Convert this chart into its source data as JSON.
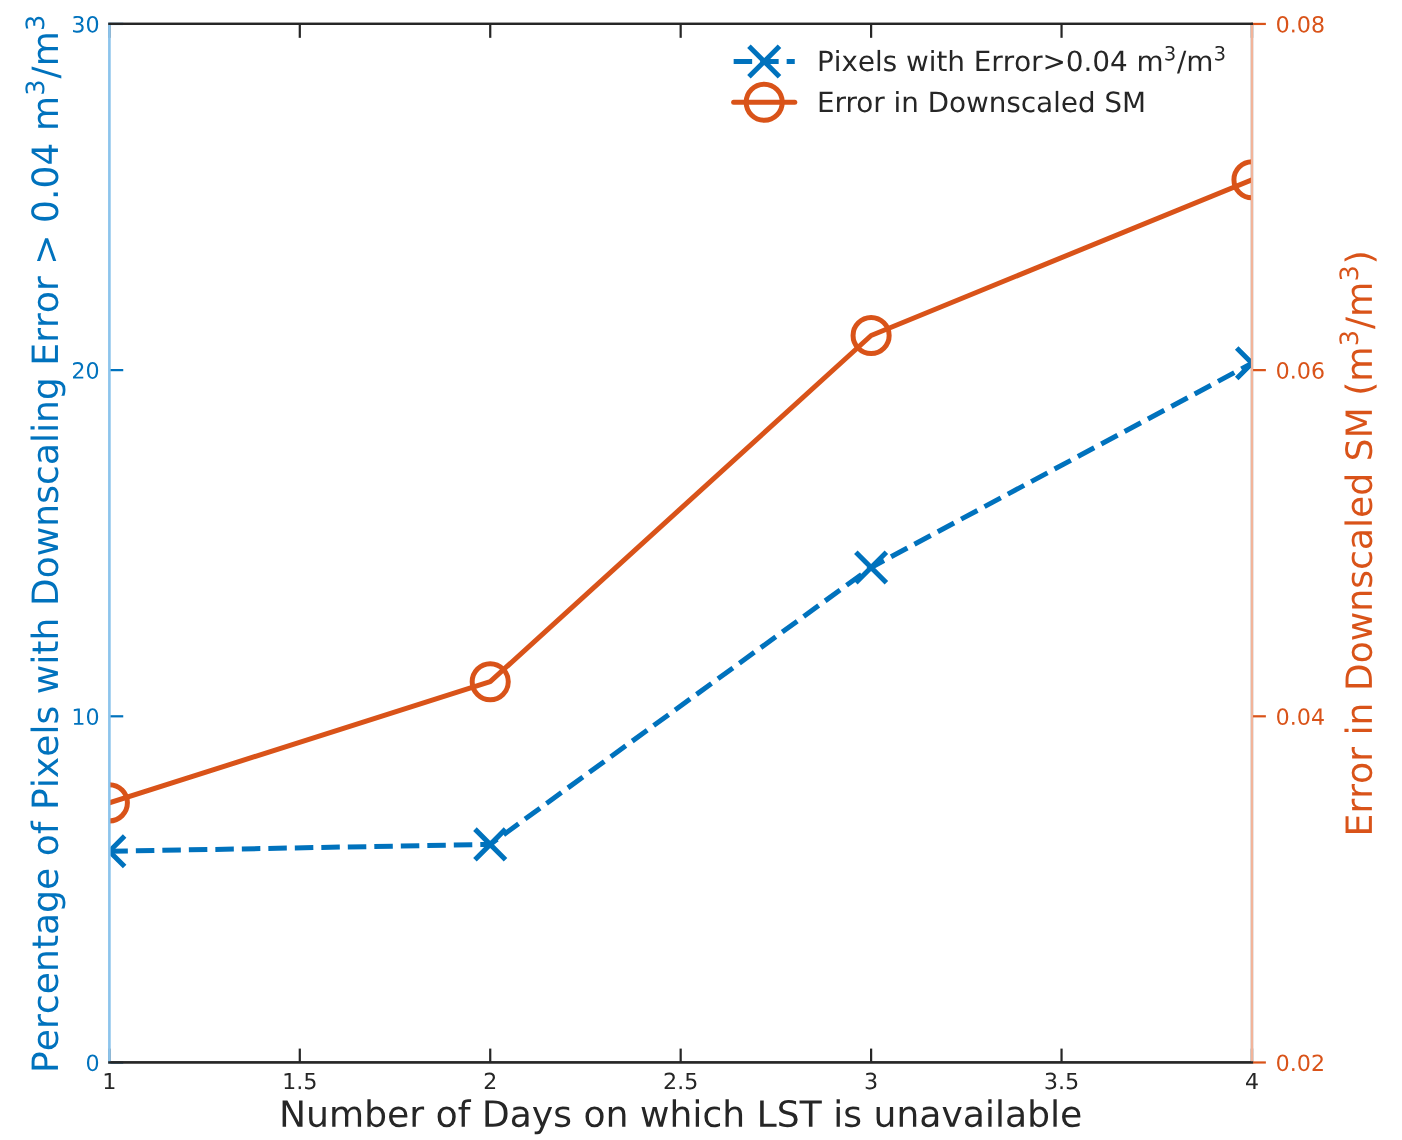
{
  "chart_data": {
    "type": "line",
    "xlabel": "Number of Days on which LST is unavailable",
    "ylabel": "Percentage of Pixels with Downscaling Error > 0.04 m$^{3}$/m$^{3}$",
    "y2label": "Error in Downscaled SM (m$^{3}$/m$^{3}$)",
    "x": [
      1,
      2,
      3,
      4
    ],
    "series": [
      {
        "name": "Pixels with Error>0.04 m$^{3}$/m$^{3}$",
        "color": "#0072bd",
        "values": [
          6.1,
          6.3,
          14.3,
          20.2
        ],
        "marker": "cross",
        "line_style": "dashed"
      },
      {
        "name": "Error in Downscaled SM",
        "color": "#d95319",
        "values": [
          0.035,
          0.042,
          0.062,
          0.071
        ],
        "marker": "circle",
        "line_style": "solid",
        "axis": "y2"
      }
    ],
    "xlim": [
      1,
      4
    ],
    "xticks": [
      1,
      1.5,
      2,
      2.5,
      3,
      3.5,
      4
    ],
    "ylim": [
      0,
      30
    ],
    "yticks": [
      0,
      10,
      20,
      30
    ],
    "y2lim": [
      0.02,
      0.08
    ],
    "y2ticks": [
      0.02,
      0.04,
      0.06,
      0.08
    ],
    "legend": "top right",
    "grid": false
  }
}
